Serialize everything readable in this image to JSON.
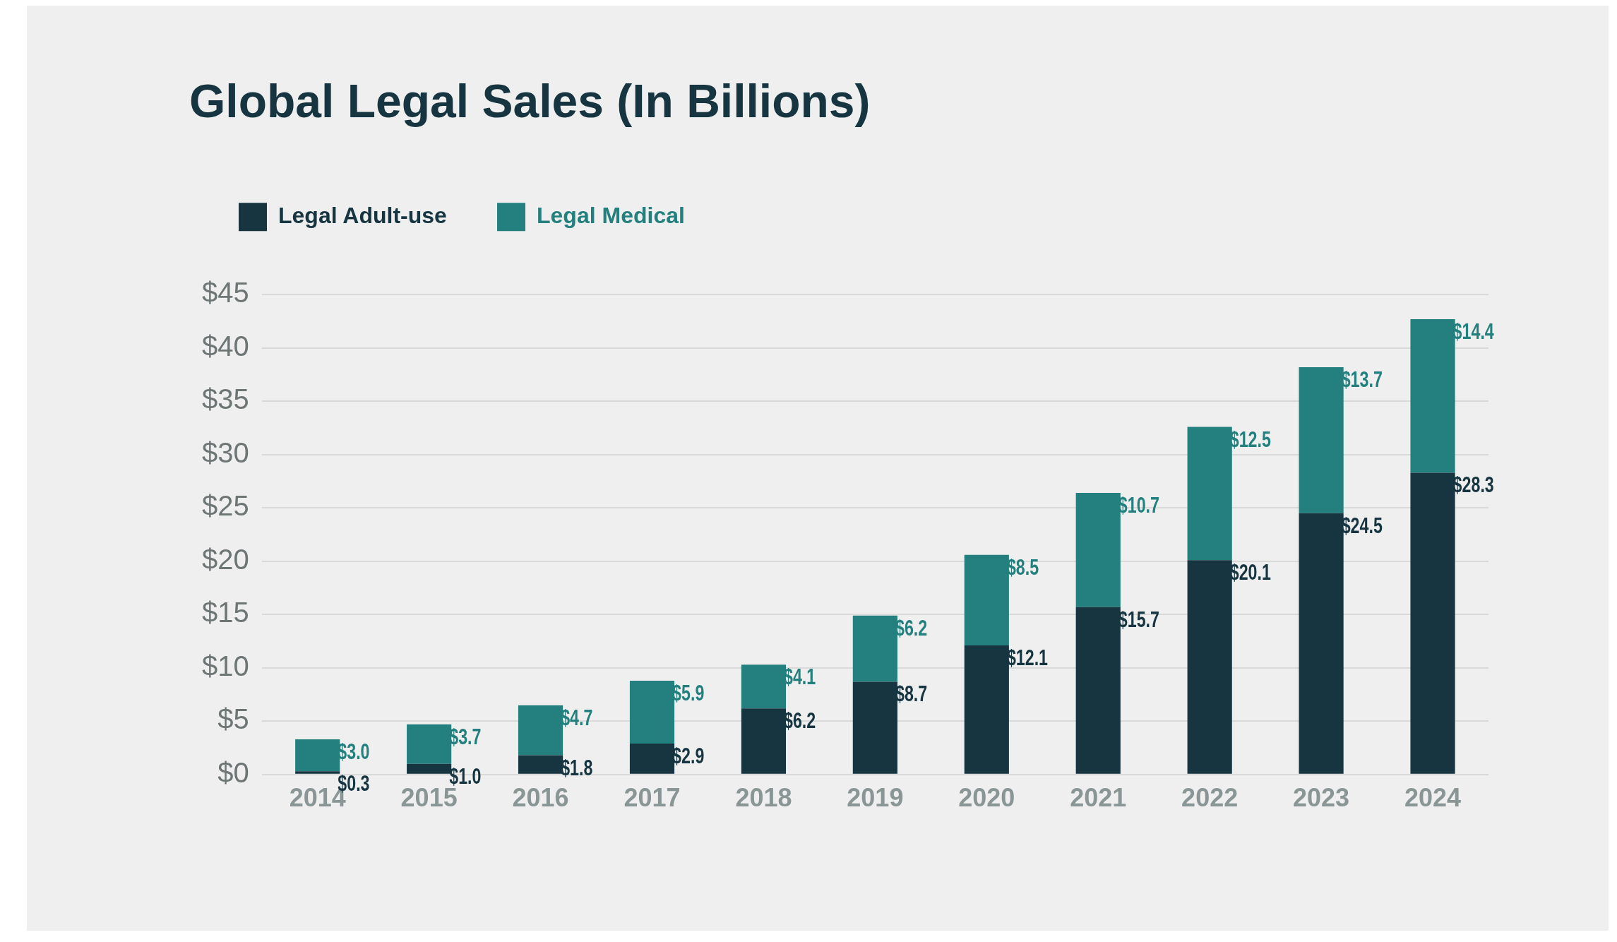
{
  "chart_data": {
    "type": "bar",
    "title": "Global Legal Sales (In Billions)",
    "stacked": true,
    "categories": [
      "2014",
      "2015",
      "2016",
      "2017",
      "2018",
      "2019",
      "2020",
      "2021",
      "2022",
      "2023",
      "2024"
    ],
    "series": [
      {
        "name": "Legal Adult-use",
        "color": "#163541",
        "values": [
          0.3,
          1.0,
          1.8,
          2.9,
          6.2,
          8.7,
          12.1,
          15.7,
          20.1,
          24.5,
          28.3
        ],
        "value_labels": [
          "$0.3",
          "$1.0",
          "$1.8",
          "$2.9",
          "$6.2",
          "$8.7",
          "$12.1",
          "$15.7",
          "$20.1",
          "$24.5",
          "$28.3"
        ]
      },
      {
        "name": "Legal Medical",
        "color": "#23807e",
        "values": [
          3.0,
          3.7,
          4.7,
          5.9,
          4.1,
          6.2,
          8.5,
          10.7,
          12.5,
          13.7,
          14.4
        ],
        "value_labels": [
          "$3.0",
          "$3.7",
          "$4.7",
          "$5.9",
          "$4.1",
          "$6.2",
          "$8.5",
          "$10.7",
          "$12.5",
          "$13.7",
          "$14.4"
        ]
      }
    ],
    "ylim": [
      0,
      45
    ],
    "yticks": [
      {
        "value": 0,
        "label": "$0"
      },
      {
        "value": 5,
        "label": "$5"
      },
      {
        "value": 10,
        "label": "$10"
      },
      {
        "value": 15,
        "label": "$15"
      },
      {
        "value": 20,
        "label": "$20"
      },
      {
        "value": 25,
        "label": "$25"
      },
      {
        "value": 30,
        "label": "$30"
      },
      {
        "value": 35,
        "label": "$35"
      },
      {
        "value": 40,
        "label": "$40"
      },
      {
        "value": 45,
        "label": "$45"
      }
    ],
    "grid": "y",
    "legend": "top left"
  }
}
